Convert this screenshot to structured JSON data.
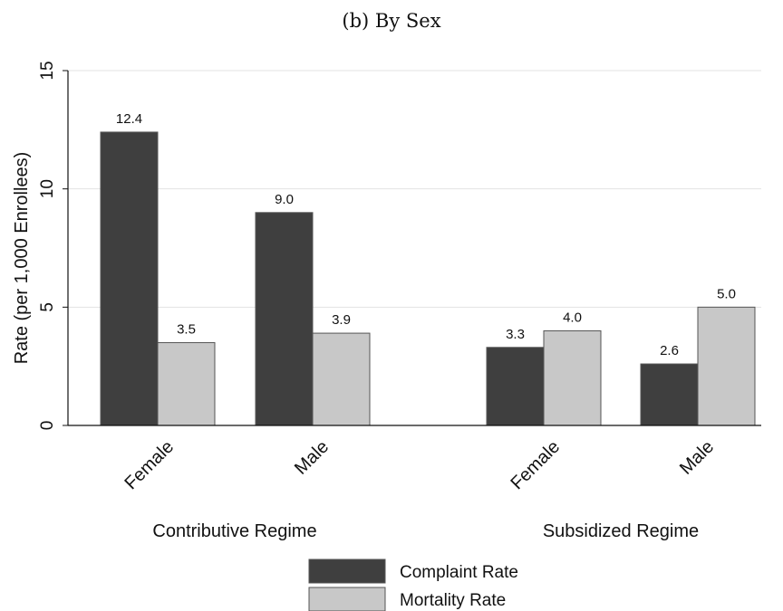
{
  "chart_data": {
    "type": "bar",
    "title": "(b) By Sex",
    "ylabel": "Rate (per 1,000 Enrollees)",
    "xlabel": "",
    "ylim": [
      0,
      15
    ],
    "yticks": [
      0,
      5,
      10,
      15
    ],
    "grid": true,
    "legend_position": "bottom",
    "groups": [
      {
        "label": "Contributive Regime",
        "categories": [
          "Female",
          "Male"
        ]
      },
      {
        "label": "Subsidized Regime",
        "categories": [
          "Female",
          "Male"
        ]
      }
    ],
    "series": [
      {
        "name": "Complaint Rate",
        "color": "#3f3f3f",
        "values": [
          12.4,
          9.0,
          3.3,
          2.6
        ],
        "labels": [
          "12.4",
          "9.0",
          "3.3",
          "2.6"
        ]
      },
      {
        "name": "Mortality Rate",
        "color": "#c8c8c8",
        "values": [
          3.5,
          3.9,
          4.0,
          5.0
        ],
        "labels": [
          "3.5",
          "3.9",
          "4.0",
          "5.0"
        ]
      }
    ]
  }
}
